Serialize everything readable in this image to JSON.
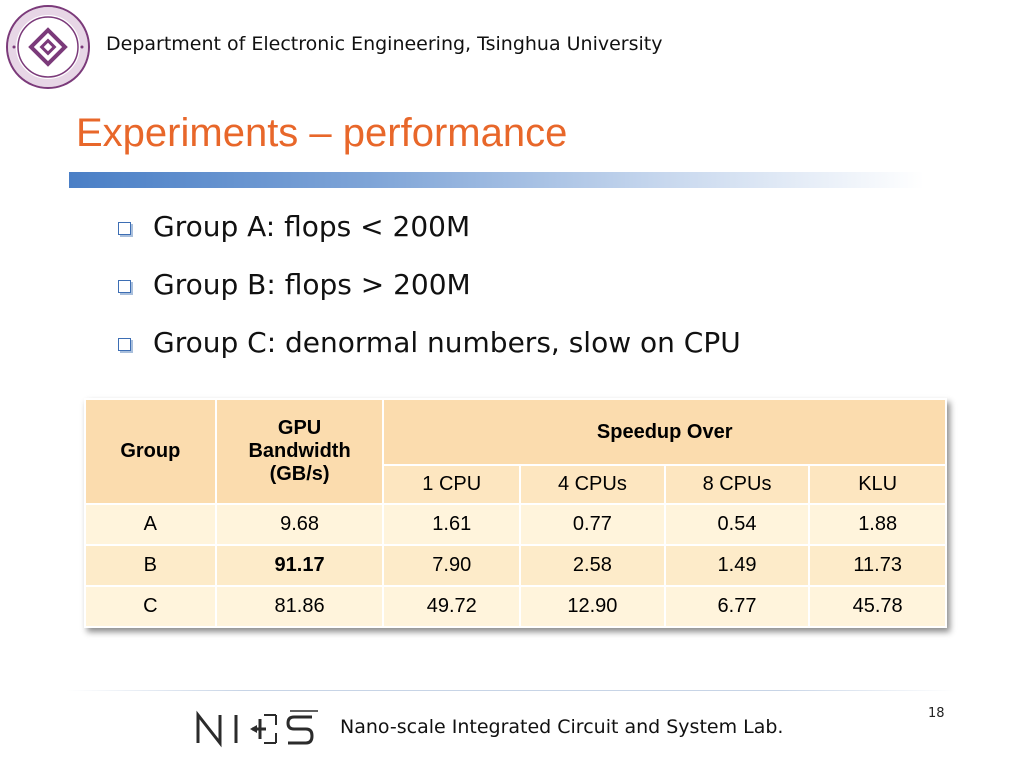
{
  "header": {
    "department": "Department of Electronic Engineering, Tsinghua University"
  },
  "slide": {
    "title": "Experiments – performance",
    "bullets": [
      "Group A: flops < 200M",
      "Group B: flops > 200M",
      "Group C: denormal numbers, slow on CPU"
    ]
  },
  "table": {
    "headers": {
      "group": "Group",
      "gpu_bw_line1": "GPU",
      "gpu_bw_line2": "Bandwidth",
      "gpu_bw_line3": "(GB/s)",
      "speedup": "Speedup Over",
      "sub": [
        "1 CPU",
        "4 CPUs",
        "8 CPUs",
        "KLU"
      ]
    },
    "rows": [
      [
        "A",
        "9.68",
        "1.61",
        "0.77",
        "0.54",
        "1.88"
      ],
      [
        "B",
        "91.17",
        "7.90",
        "2.58",
        "1.49",
        "11.73"
      ],
      [
        "C",
        "81.86",
        "49.72",
        "12.90",
        "6.77",
        "45.78"
      ]
    ],
    "colors": {
      "header": "#fbdcae",
      "row_light": "#fff4dc",
      "row_mid": "#fdebc9"
    }
  },
  "footer": {
    "logo_text": "NICS",
    "lab_name": "Nano-scale Integrated Circuit and System Lab.",
    "page_number": "18"
  },
  "colors": {
    "title": "#e8672a",
    "accent_blue": "#4a7fc6"
  },
  "icons": {
    "university_logo": "tsinghua-ee-emblem-icon",
    "bullet": "hollow-square-bullet-icon",
    "lab_logo": "nics-logo"
  }
}
